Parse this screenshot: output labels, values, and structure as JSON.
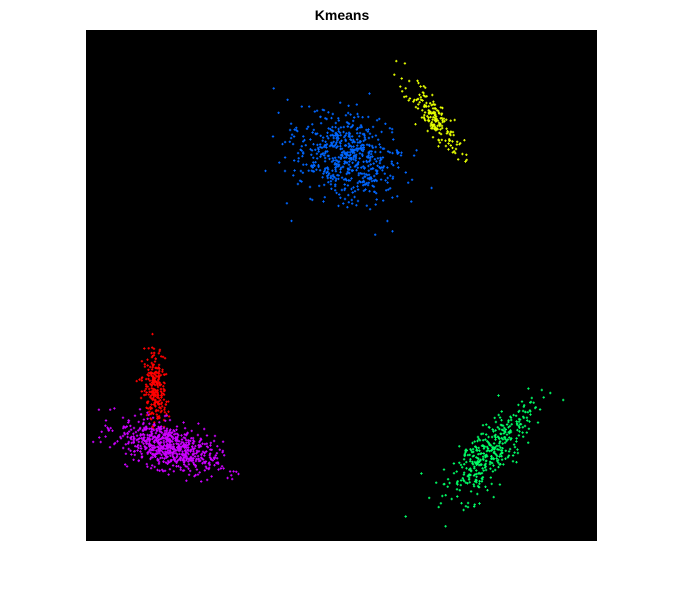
{
  "chart_data": {
    "type": "scatter",
    "title": "Kmeans",
    "xlabel": "",
    "ylabel": "",
    "axes_visible": false,
    "background": "#000000",
    "grid": false,
    "xlim": [
      0,
      100
    ],
    "ylim": [
      0,
      100
    ],
    "marker": "+",
    "clusters": [
      {
        "color": "#0066ff",
        "center": [
          51,
          75
        ],
        "spread": [
          5.5,
          4.0
        ],
        "angle": -30,
        "count": 600
      },
      {
        "color": "#e6ff00",
        "center": [
          68,
          83
        ],
        "spread": [
          4.5,
          1.3
        ],
        "angle": -55,
        "count": 180
      },
      {
        "color": "#ff0000",
        "center": [
          13.5,
          30
        ],
        "spread": [
          3.5,
          1.1
        ],
        "angle": -85,
        "count": 260
      },
      {
        "color": "#cc00ff",
        "center": [
          16,
          18.5
        ],
        "spread": [
          5.0,
          2.1
        ],
        "angle": -18,
        "count": 700
      },
      {
        "color": "#00ff66",
        "center": [
          79,
          17.5
        ],
        "spread": [
          6.0,
          2.1
        ],
        "angle": 50,
        "count": 380
      }
    ]
  }
}
